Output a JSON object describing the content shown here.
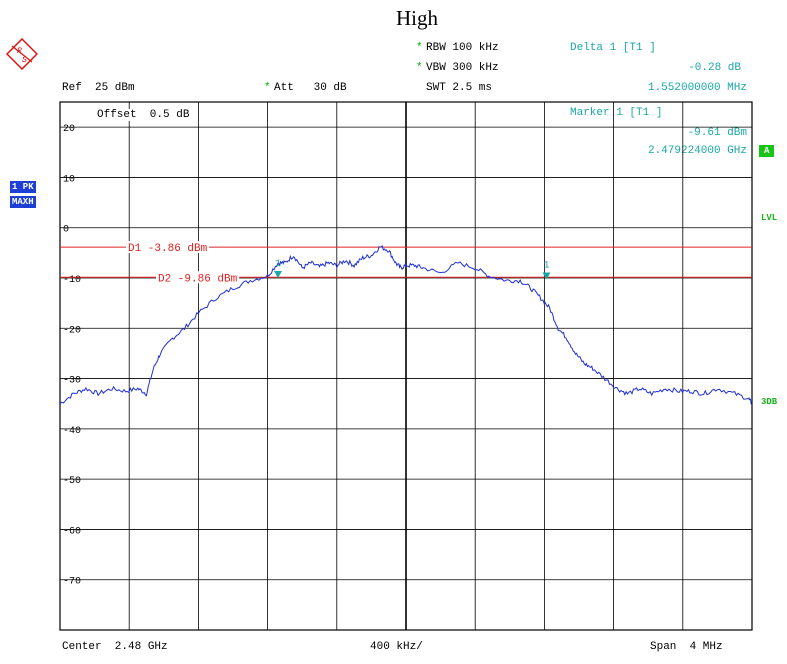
{
  "title": "High",
  "header": {
    "rbw": "RBW 100 kHz",
    "vbw": "VBW 300 kHz",
    "swt": "SWT 2.5 ms",
    "ref": "Ref  25 dBm",
    "att": "Att   30 dB",
    "offset": "Offset  0.5 dB",
    "star": "*"
  },
  "markers": {
    "delta_title": "Delta 1 [T1 ]",
    "delta_level": "-0.28 dB",
    "delta_freq": "1.552000000 MHz",
    "marker_title": "Marker 1 [T1 ]",
    "marker_level": "-9.61 dBm",
    "marker_freq": "2.479224000 GHz",
    "marker_label": "1"
  },
  "side": {
    "trace_mode_1": "1 PK",
    "trace_mode_2": "MAXH",
    "a_tag": "A",
    "lvl": "LVL",
    "db3": "3DB"
  },
  "footer": {
    "center": "Center  2.48 GHz",
    "div": "400 kHz/",
    "span": "Span  4 MHz"
  },
  "colors": {
    "trace": "#1f2fd6",
    "display_line": "#e02020",
    "marker": "#1ba7a7",
    "grid": "#000000"
  },
  "chart_data": {
    "type": "line",
    "x_unit": "MHz offset from center",
    "xlim": [
      -2,
      2
    ],
    "ylim": [
      -80,
      25
    ],
    "y_ticks": [
      20,
      10,
      0,
      -10,
      -20,
      -30,
      -40,
      -50,
      -60,
      -70
    ],
    "y_tick_labels": [
      "20",
      "10",
      "0",
      "-10",
      "-20",
      "-30",
      "-40",
      "-50",
      "-60",
      "-70"
    ],
    "display_lines": [
      {
        "name": "D1",
        "label": "D1 -3.86 dBm",
        "value": -3.86
      },
      {
        "name": "D2",
        "label": "D2 -9.86 dBm",
        "value": -9.86
      }
    ],
    "series": [
      {
        "values_x": [
          -2.0,
          -1.92,
          -1.85,
          -1.78,
          -1.7,
          -1.62,
          -1.55,
          -1.5,
          -1.46,
          -1.42,
          -1.35,
          -1.28,
          -1.2,
          -1.1,
          -1.0,
          -0.9,
          -0.8,
          -0.74,
          -0.7,
          -0.65,
          -0.6,
          -0.55,
          -0.5,
          -0.45,
          -0.4,
          -0.35,
          -0.3,
          -0.25,
          -0.2,
          -0.15,
          -0.1,
          -0.06,
          -0.03,
          0.0,
          0.05,
          0.1,
          0.2,
          0.3,
          0.4,
          0.48,
          0.58,
          0.66,
          0.72,
          0.78,
          0.83,
          0.88,
          0.93,
          0.98,
          1.03,
          1.08,
          1.15,
          1.22,
          1.28,
          1.35,
          1.42,
          1.5,
          1.58,
          1.65,
          1.72,
          1.8,
          1.9,
          1.98,
          2.0
        ],
        "values_y": [
          -35,
          -33,
          -32,
          -33,
          -32,
          -32.5,
          -32,
          -33,
          -28,
          -25,
          -22,
          -20,
          -17,
          -14,
          -12,
          -10.5,
          -9.6,
          -7,
          -7,
          -5.5,
          -8,
          -7,
          -7.8,
          -7,
          -7.5,
          -6.5,
          -7.5,
          -6,
          -5.5,
          -3.8,
          -4.5,
          -7,
          -8,
          -7.5,
          -7.5,
          -8,
          -9,
          -7,
          -8,
          -9.6,
          -10.5,
          -10.5,
          -12,
          -14,
          -16,
          -20,
          -22,
          -25,
          -27,
          -28,
          -30,
          -32,
          -33,
          -32,
          -33,
          -32,
          -32.5,
          -32.5,
          -33,
          -32,
          -33,
          -34,
          -35
        ]
      }
    ],
    "marker_points": [
      {
        "name": "1",
        "x": -0.74,
        "y": -9.61
      },
      {
        "name": "1",
        "x": 0.812,
        "y": -9.89
      }
    ]
  }
}
